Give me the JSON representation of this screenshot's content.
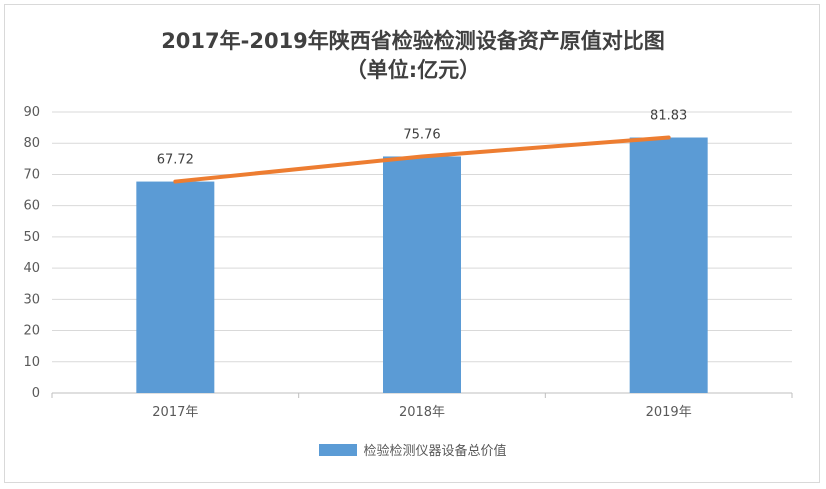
{
  "title_line1": "2017年-2019年陕西省检验检测设备资产原值对比图",
  "title_line2": "（单位:亿元）",
  "chart_data": {
    "type": "bar",
    "categories": [
      "2017年",
      "2018年",
      "2019年"
    ],
    "series": [
      {
        "name": "检验检测仪器设备总价值",
        "values": [
          67.72,
          75.76,
          81.83
        ],
        "color": "#5b9bd5"
      }
    ],
    "trend_line": {
      "values": [
        67.72,
        75.76,
        81.83
      ],
      "color": "#ed7d31"
    },
    "data_labels": [
      "67.72",
      "75.76",
      "81.83"
    ],
    "ylim": [
      0,
      90
    ],
    "yticks": [
      0,
      10,
      20,
      30,
      40,
      50,
      60,
      70,
      80,
      90
    ],
    "grid": true,
    "legend_position": "bottom"
  },
  "legend": {
    "label": "检验检测仪器设备总价值"
  }
}
